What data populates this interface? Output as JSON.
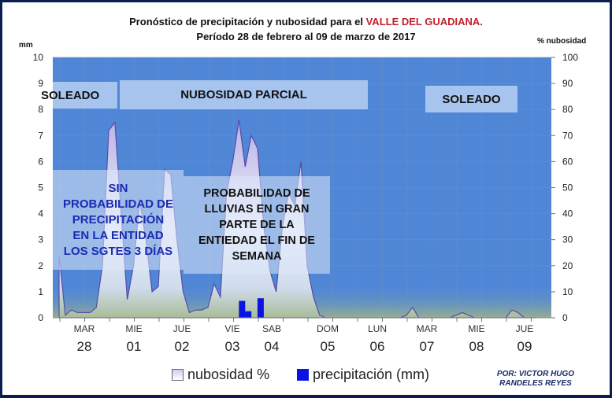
{
  "header": {
    "title_prefix": "Pronóstico de precipitación y nubosidad para  el ",
    "title_highlight": "VALLE DEL GUADIANA.",
    "subtitle": "Período  28 de febrero al 09 de marzo de 2017",
    "left_axis_title": "mm",
    "right_axis_title": "% nubosidad"
  },
  "bands": [
    {
      "label": "SOLEADO"
    },
    {
      "label": "NUBOSIDAD PARCIAL"
    },
    {
      "label": "SOLEADO"
    }
  ],
  "notes": [
    {
      "lines": [
        "SIN",
        "PROBABILIDAD DE",
        "PRECIPITACIÓN",
        "EN LA ENTIDAD",
        "LOS SGTES 3 DÍAS"
      ]
    },
    {
      "lines": [
        "PROBABILIDAD DE",
        "LLUVIAS EN GRAN",
        "PARTE DE LA",
        "ENTIEDAD EL FIN DE",
        "SEMANA"
      ]
    }
  ],
  "legend": {
    "nubosidad": "nubosidad %",
    "precipitacion": "precipitación (mm)"
  },
  "author": {
    "line1": "POR: VICTOR HUGO",
    "line2": "RANDELES REYES"
  },
  "colors": {
    "plot_bg": "#4f86d6",
    "cloud_fill": "#e6e6fa",
    "cloud_stroke": "#5a4aa8",
    "precip": "#0a14e0",
    "title_red": "#c0202a",
    "frame": "#0b1f4f"
  },
  "chart_data": {
    "type": "area",
    "title": "Pronóstico de precipitación y nubosidad para el VALLE DEL GUADIANA. Período 28 de febrero al 09 de marzo de 2017",
    "ylabel_left": "mm",
    "ylabel_right": "% nubosidad",
    "ylim_left": [
      0,
      10
    ],
    "ylim_right": [
      0,
      100
    ],
    "yticks_left": [
      0,
      1,
      2,
      3,
      4,
      5,
      6,
      7,
      8,
      9,
      10
    ],
    "yticks_right": [
      0,
      10,
      20,
      30,
      40,
      50,
      60,
      70,
      80,
      90,
      100
    ],
    "grid": true,
    "legend_position": "bottom",
    "categories_days": [
      "MAR",
      "MIE",
      "JUE",
      "VIE",
      "SAB",
      "DOM",
      "LUN",
      "MAR",
      "MIE",
      "JUE"
    ],
    "categories_dates": [
      "28",
      "01",
      "02",
      "03",
      "04",
      "05",
      "06",
      "07",
      "08",
      "09"
    ],
    "x_points_per_day": 8,
    "series": [
      {
        "name": "nubosidad %",
        "axis": "right",
        "type": "area",
        "values": [
          24,
          1,
          3,
          2,
          2,
          2,
          4,
          20,
          72,
          75,
          40,
          7,
          20,
          45,
          30,
          10,
          12,
          57,
          55,
          30,
          10,
          2,
          3,
          3,
          4,
          13,
          8,
          48,
          60,
          76,
          58,
          70,
          65,
          35,
          18,
          10,
          35,
          48,
          43,
          60,
          20,
          8,
          1,
          0,
          0,
          0,
          0,
          0,
          0,
          0,
          0,
          0,
          0,
          0,
          0,
          0,
          1,
          4,
          0,
          0,
          0,
          0,
          0,
          0,
          1,
          2,
          1,
          0,
          0,
          0,
          0,
          0,
          0,
          3,
          2,
          0,
          0,
          0
        ]
      },
      {
        "name": "precipitación (mm)",
        "axis": "left",
        "type": "bar",
        "x_index": [
          29.5,
          30.5,
          32.5
        ],
        "values": [
          0.65,
          0.25,
          0.75
        ]
      }
    ],
    "annotations": [
      "SOLEADO",
      "NUBOSIDAD PARCIAL",
      "SOLEADO",
      "SIN PROBABILIDAD DE PRECIPITACIÓN EN LA ENTIDAD LOS SGTES 3 DÍAS",
      "PROBABILIDAD DE LLUVIAS EN GRAN PARTE DE LA ENTIEDAD EL FIN DE SEMANA"
    ]
  }
}
